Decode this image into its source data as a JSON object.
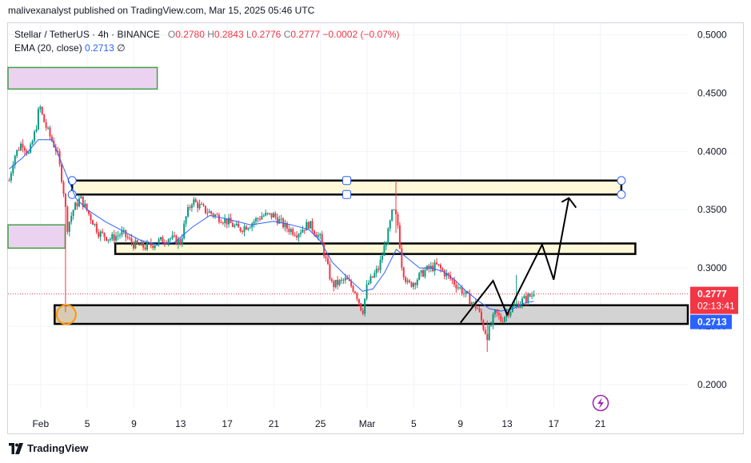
{
  "header": {
    "publish_line": "malivexanalyst published on TradingView.com, Mar 15, 2025 05:46 UTC"
  },
  "legend": {
    "symbol": "Stellar / TetherUS · 4h · BINANCE",
    "open_label": "O",
    "open": "0.2780",
    "high_label": "H",
    "high": "0.2843",
    "low_label": "L",
    "low": "0.2776",
    "close_label": "C",
    "close": "0.2777",
    "change": "−0.0002 (−0.07%)",
    "ema_label": "EMA (20, close)",
    "ema_value": "0.2713",
    "ema_extra": "∅"
  },
  "footer": {
    "brand": "TradingView"
  },
  "colors": {
    "up": "#089981",
    "down": "#f23645",
    "ema": "#2962ff",
    "price_badge": "#f23645",
    "ema_badge": "#2962ff",
    "zone_purple": "#ecd2f1",
    "zone_purple_border": "#43a047",
    "zone_yellow": "#fff9d9",
    "zone_gray": "#d3d3d3"
  },
  "chart_data": {
    "type": "candlestick",
    "y_range": [
      0.18,
      0.51
    ],
    "y_ticks": [
      "0.5000",
      "0.4500",
      "0.4000",
      "0.3500",
      "0.3000",
      "0.2500",
      "0.2000"
    ],
    "x_labels": [
      {
        "label": "Feb",
        "day": 32
      },
      {
        "label": "5",
        "day": 36
      },
      {
        "label": "9",
        "day": 40
      },
      {
        "label": "13",
        "day": 44
      },
      {
        "label": "17",
        "day": 48
      },
      {
        "label": "21",
        "day": 52
      },
      {
        "label": "25",
        "day": 56
      },
      {
        "label": "Mar",
        "day": 60
      },
      {
        "label": "5",
        "day": 64
      },
      {
        "label": "9",
        "day": 68
      },
      {
        "label": "13",
        "day": 72
      },
      {
        "label": "17",
        "day": 76
      },
      {
        "label": "21",
        "day": 80
      }
    ],
    "x_day_range": [
      29.2,
      87.5
    ],
    "price_path": [
      [
        29.3,
        0.375
      ],
      [
        29.7,
        0.395
      ],
      [
        30.4,
        0.408
      ],
      [
        31.0,
        0.397
      ],
      [
        31.6,
        0.42
      ],
      [
        31.9,
        0.44
      ],
      [
        32.2,
        0.428
      ],
      [
        32.7,
        0.415
      ],
      [
        33.4,
        0.4
      ],
      [
        33.9,
        0.372
      ],
      [
        34.3,
        0.335
      ],
      [
        34.8,
        0.35
      ],
      [
        35.4,
        0.36
      ],
      [
        36.2,
        0.345
      ],
      [
        37.0,
        0.33
      ],
      [
        38.0,
        0.325
      ],
      [
        39.0,
        0.33
      ],
      [
        40.0,
        0.32
      ],
      [
        41.0,
        0.318
      ],
      [
        42.0,
        0.322
      ],
      [
        43.0,
        0.326
      ],
      [
        44.0,
        0.322
      ],
      [
        44.5,
        0.345
      ],
      [
        45.0,
        0.358
      ],
      [
        46.0,
        0.35
      ],
      [
        47.0,
        0.345
      ],
      [
        48.0,
        0.34
      ],
      [
        49.0,
        0.333
      ],
      [
        50.0,
        0.338
      ],
      [
        51.0,
        0.345
      ],
      [
        52.0,
        0.345
      ],
      [
        53.0,
        0.335
      ],
      [
        54.0,
        0.33
      ],
      [
        55.0,
        0.338
      ],
      [
        56.0,
        0.325
      ],
      [
        57.0,
        0.285
      ],
      [
        57.5,
        0.287
      ],
      [
        58.2,
        0.29
      ],
      [
        59.0,
        0.28
      ],
      [
        59.6,
        0.262
      ],
      [
        60.0,
        0.285
      ],
      [
        61.0,
        0.3
      ],
      [
        61.8,
        0.33
      ],
      [
        62.2,
        0.35
      ],
      [
        62.6,
        0.34
      ],
      [
        63.0,
        0.3
      ],
      [
        63.5,
        0.285
      ],
      [
        64.0,
        0.288
      ],
      [
        65.0,
        0.298
      ],
      [
        66.0,
        0.302
      ],
      [
        67.0,
        0.292
      ],
      [
        68.0,
        0.282
      ],
      [
        69.0,
        0.27
      ],
      [
        69.5,
        0.265
      ],
      [
        70.0,
        0.248
      ],
      [
        70.3,
        0.242
      ],
      [
        71.0,
        0.262
      ],
      [
        71.5,
        0.255
      ],
      [
        72.0,
        0.262
      ],
      [
        73.0,
        0.27
      ],
      [
        73.8,
        0.275
      ],
      [
        74.3,
        0.2777
      ]
    ],
    "anomalies": [
      {
        "day": 34.2,
        "low": 0.262,
        "high": 0.34
      },
      {
        "day": 62.4,
        "low": 0.33,
        "high": 0.375
      },
      {
        "day": 70.3,
        "low": 0.228,
        "high": 0.255
      },
      {
        "day": 72.8,
        "low": 0.265,
        "high": 0.294
      }
    ],
    "ema": [
      [
        29.3,
        0.385
      ],
      [
        30.5,
        0.395
      ],
      [
        31.8,
        0.41
      ],
      [
        33.0,
        0.41
      ],
      [
        34.0,
        0.385
      ],
      [
        35.0,
        0.36
      ],
      [
        36.0,
        0.35
      ],
      [
        37.5,
        0.34
      ],
      [
        39.0,
        0.332
      ],
      [
        40.5,
        0.324
      ],
      [
        42.0,
        0.32
      ],
      [
        43.5,
        0.322
      ],
      [
        45.0,
        0.335
      ],
      [
        46.5,
        0.345
      ],
      [
        48.0,
        0.342
      ],
      [
        50.0,
        0.337
      ],
      [
        52.0,
        0.34
      ],
      [
        53.5,
        0.337
      ],
      [
        55.0,
        0.333
      ],
      [
        56.0,
        0.323
      ],
      [
        57.0,
        0.305
      ],
      [
        58.5,
        0.29
      ],
      [
        59.6,
        0.28
      ],
      [
        60.5,
        0.282
      ],
      [
        61.5,
        0.296
      ],
      [
        62.5,
        0.316
      ],
      [
        63.5,
        0.308
      ],
      [
        64.5,
        0.3
      ],
      [
        65.5,
        0.3
      ],
      [
        66.5,
        0.297
      ],
      [
        67.5,
        0.29
      ],
      [
        68.5,
        0.28
      ],
      [
        69.5,
        0.272
      ],
      [
        70.5,
        0.265
      ],
      [
        71.5,
        0.263
      ],
      [
        72.5,
        0.265
      ],
      [
        73.5,
        0.27
      ],
      [
        74.3,
        0.2713
      ]
    ],
    "zones": [
      {
        "kind": "purple",
        "x1": 29.2,
        "x2": 42.0,
        "y_top": 0.472,
        "y_bottom": 0.4535
      },
      {
        "kind": "purple",
        "x1": 29.2,
        "x2": 34.1,
        "y_top": 0.337,
        "y_bottom": 0.317
      },
      {
        "kind": "yellow",
        "x1": 34.7,
        "x2": 81.8,
        "y_top": 0.375,
        "y_bottom": 0.363,
        "handles": true
      },
      {
        "kind": "yellow",
        "x1": 38.4,
        "x2": 83.0,
        "y_top": 0.321,
        "y_bottom": 0.312
      },
      {
        "kind": "gray",
        "x1": 33.2,
        "x2": 87.5,
        "y_top": 0.268,
        "y_bottom": 0.252
      }
    ],
    "projection": [
      [
        68.0,
        0.253
      ],
      [
        70.8,
        0.289
      ],
      [
        72.0,
        0.26
      ],
      [
        75.0,
        0.32
      ],
      [
        76.0,
        0.29
      ],
      [
        77.3,
        0.36
      ]
    ],
    "markers": [
      {
        "kind": "circle",
        "day": 34.2,
        "price": 0.26
      }
    ],
    "current_price": "0.2777",
    "countdown": "02:13:41",
    "ema_badge": "0.2713"
  }
}
